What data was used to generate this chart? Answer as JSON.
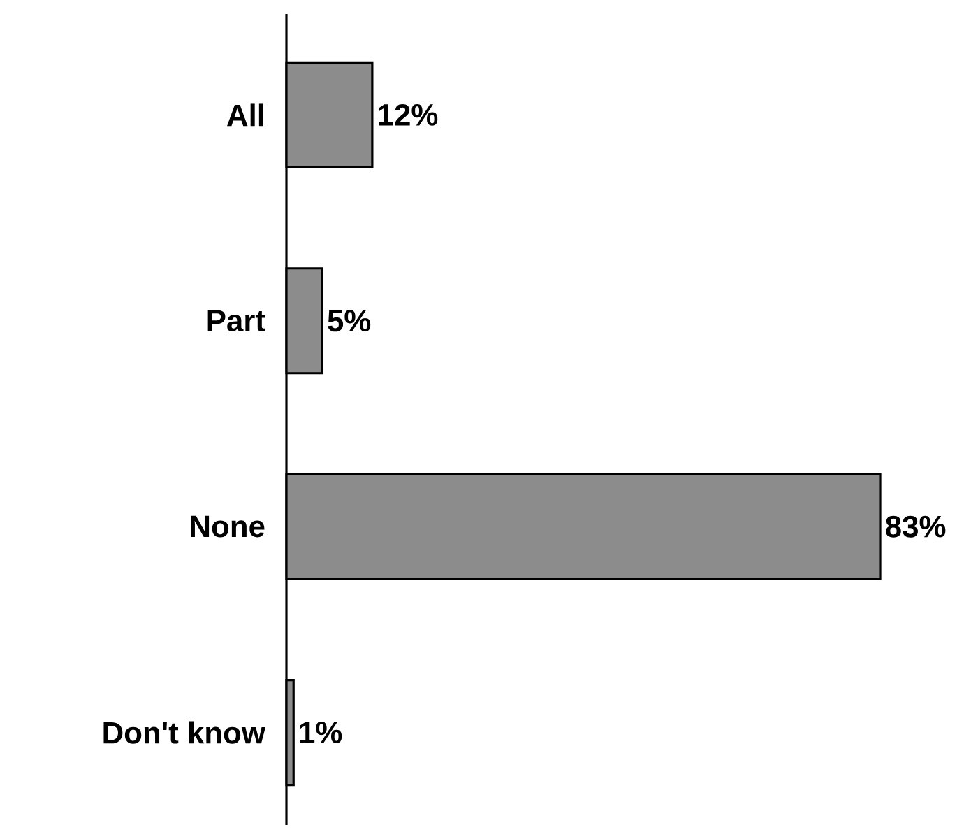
{
  "chart_data": {
    "type": "bar",
    "orientation": "horizontal",
    "categories": [
      "All",
      "Part",
      "None",
      "Don't know"
    ],
    "values": [
      12,
      5,
      83,
      1
    ],
    "value_labels": [
      "12%",
      "5%",
      "83%",
      "1%"
    ],
    "color": "#8c8c8c"
  }
}
